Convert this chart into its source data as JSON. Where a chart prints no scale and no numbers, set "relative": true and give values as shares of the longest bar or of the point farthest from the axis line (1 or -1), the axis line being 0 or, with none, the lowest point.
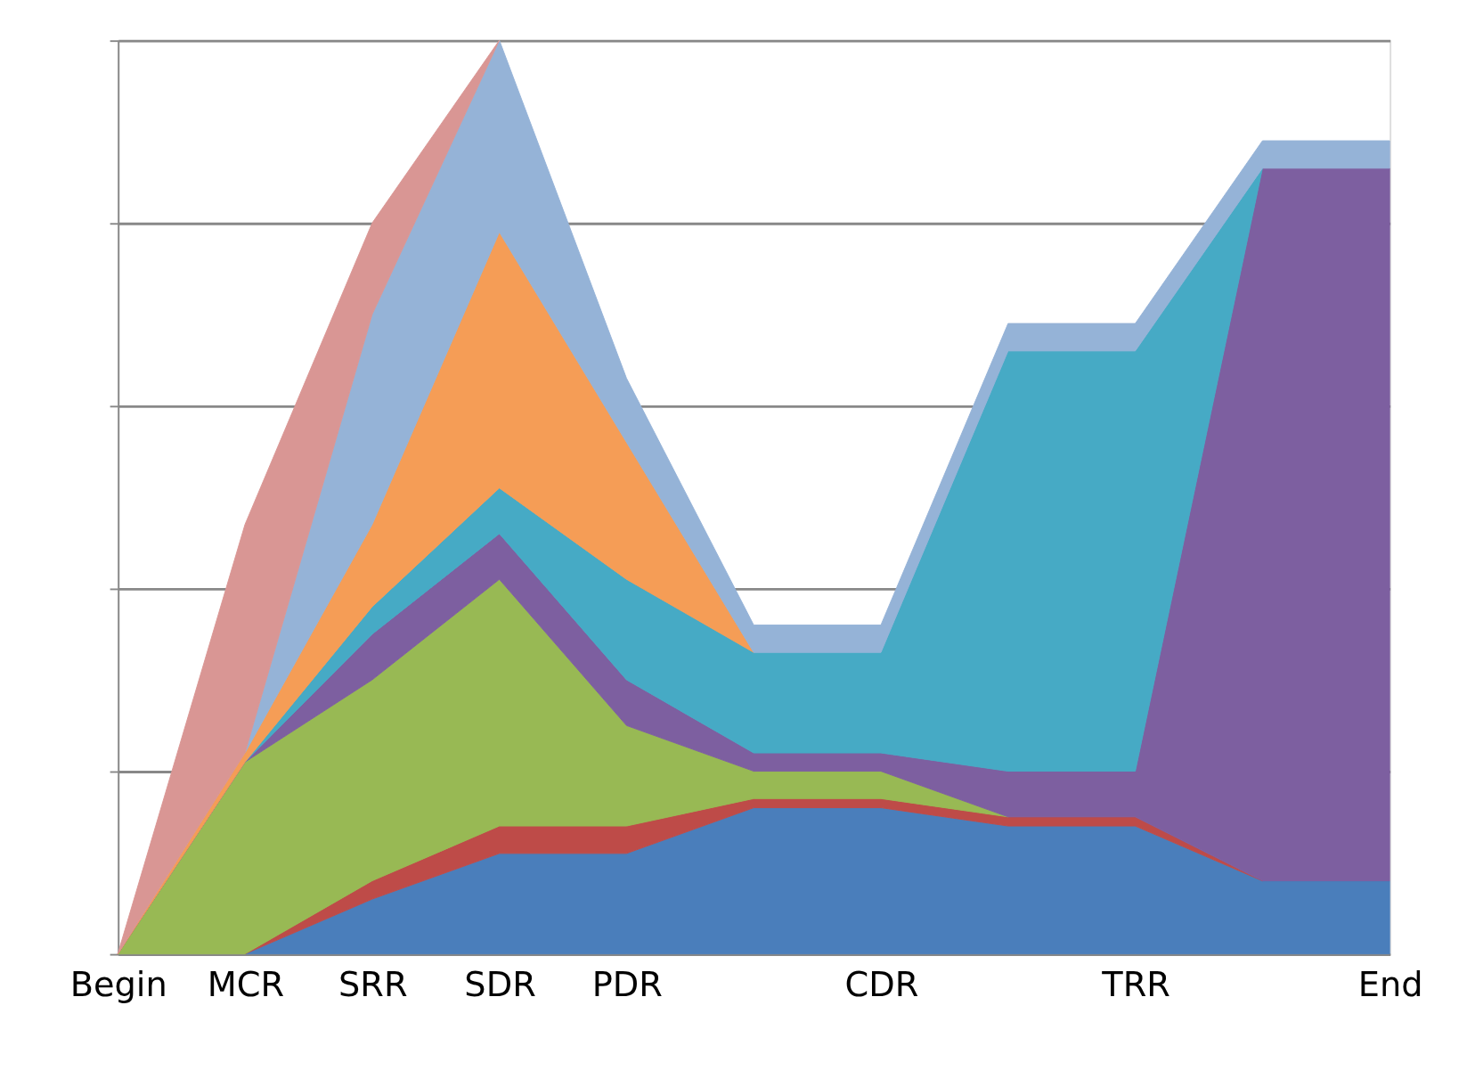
{
  "chart_data": {
    "type": "area",
    "stacked": true,
    "relative": true,
    "grid": "y",
    "legend": false,
    "categories": [
      "Begin",
      "MCR",
      "SRR",
      "SDR",
      "PDR",
      null,
      "CDR",
      null,
      "TRR",
      null,
      "End"
    ],
    "series": [
      {
        "color": "#4a7ebb",
        "values": [
          null,
          0,
          0.06,
          0.11,
          0.11,
          0.16,
          0.16,
          0.14,
          0.14,
          0.08,
          0.08
        ]
      },
      {
        "color": "#be4b48",
        "values": [
          null,
          0,
          0.02,
          0.03,
          0.03,
          0.01,
          0.01,
          0.01,
          0.01,
          0,
          null
        ]
      },
      {
        "color": "#98b954",
        "values": [
          0,
          0.21,
          0.22,
          0.27,
          0.11,
          0.03,
          0.03,
          0,
          null,
          null,
          null
        ]
      },
      {
        "color": "#7d5fa0",
        "values": [
          0,
          0,
          0.05,
          0.05,
          0.05,
          0.02,
          0.02,
          0.05,
          0.05,
          0.78,
          0.78
        ]
      },
      {
        "color": "#46aac5",
        "values": [
          null,
          0,
          0.03,
          0.05,
          0.11,
          0.11,
          0.11,
          0.46,
          0.46,
          0,
          null
        ]
      },
      {
        "color": "#f59d56",
        "values": [
          0,
          0.01,
          0.09,
          0.28,
          0.15,
          0,
          null,
          null,
          null,
          null,
          null
        ]
      },
      {
        "color": "#95b3d7",
        "values": [
          null,
          0,
          0.23,
          0.21,
          0.07,
          0.03,
          0.03,
          0.03,
          0.03,
          0.03,
          0.03
        ]
      },
      {
        "color": "#d99694",
        "values": [
          0,
          0.25,
          0.1,
          0,
          null,
          null,
          null,
          null,
          null,
          null,
          null
        ]
      }
    ]
  }
}
